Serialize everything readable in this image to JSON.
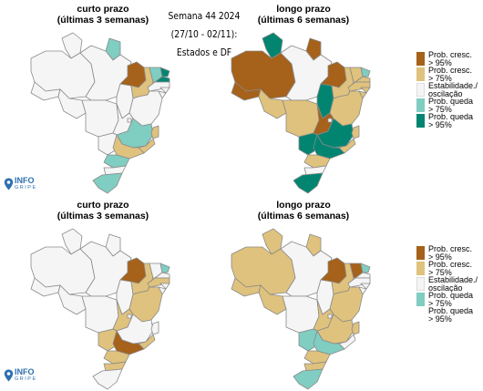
{
  "main_title": {
    "line1": "Semana 44 2024",
    "line2": "(27/10 - 02/11):",
    "line3": "Estados e DF"
  },
  "panels": [
    {
      "title_line1": "curto prazo",
      "title_line2": "(últimas 3 semanas)",
      "states": {
        "RR": "stable",
        "AP": "queda75",
        "AM": "stable",
        "PA": "stable",
        "AC": "stable",
        "RO": "stable",
        "MT": "stable",
        "TO": "stable",
        "MA": "cresc95",
        "PI": "cresc75",
        "CE": "queda75",
        "RN": "queda95",
        "PB": "queda95",
        "PE": "stable",
        "AL": "stable",
        "SE": "stable",
        "BA": "stable",
        "GO": "stable",
        "DF": "stable",
        "MS": "stable",
        "MG": "queda75",
        "ES": "cresc75",
        "RJ": "cresc75",
        "SP": "cresc75",
        "PR": "queda75",
        "SC": "stable",
        "RS": "queda75"
      }
    },
    {
      "title_line1": "longo prazo",
      "title_line2": "(últimas 6 semanas)",
      "states": {
        "RR": "queda95",
        "AP": "cresc95",
        "AM": "cresc95",
        "PA": "stable",
        "AC": "cresc95",
        "RO": "cresc75",
        "MT": "cresc75",
        "TO": "queda95",
        "MA": "cresc95",
        "PI": "cresc75",
        "CE": "cresc75",
        "RN": "queda75",
        "PB": "cresc75",
        "PE": "cresc75",
        "AL": "cresc75",
        "SE": "cresc75",
        "BA": "cresc75",
        "GO": "cresc95",
        "DF": "stable",
        "MS": "queda95",
        "MG": "queda95",
        "ES": "cresc75",
        "RJ": "cresc75",
        "SP": "queda95",
        "PR": "cresc75",
        "SC": "stable",
        "RS": "queda95"
      }
    },
    {
      "title_line1": "curto prazo",
      "title_line2": "(últimas 3 semanas)",
      "states": {
        "RR": "stable",
        "AP": "stable",
        "AM": "stable",
        "PA": "stable",
        "AC": "stable",
        "RO": "stable",
        "MT": "stable",
        "TO": "stable",
        "MA": "cresc95",
        "PI": "cresc75",
        "CE": "stable",
        "RN": "queda75",
        "PB": "stable",
        "PE": "cresc75",
        "AL": "stable",
        "SE": "stable",
        "BA": "cresc75",
        "GO": "cresc75",
        "DF": "stable",
        "MS": "cresc75",
        "MG": "stable",
        "ES": "stable",
        "RJ": "cresc75",
        "SP": "cresc95",
        "PR": "cresc75",
        "SC": "cresc75",
        "RS": "stable"
      }
    },
    {
      "title_line1": "longo prazo",
      "title_line2": "(últimas 6 semanas)",
      "states": {
        "RR": "cresc75",
        "AP": "cresc75",
        "AM": "cresc75",
        "PA": "stable",
        "AC": "cresc75",
        "RO": "cresc75",
        "MT": "stable",
        "TO": "stable",
        "MA": "cresc95",
        "PI": "cresc75",
        "CE": "cresc95",
        "RN": "queda75",
        "PB": "stable",
        "PE": "stable",
        "AL": "stable",
        "SE": "stable",
        "BA": "cresc75",
        "GO": "cresc75",
        "DF": "stable",
        "MS": "queda75",
        "MG": "cresc75",
        "ES": "cresc75",
        "RJ": "stable",
        "SP": "queda75",
        "PR": "cresc75",
        "SC": "cresc75",
        "RS": "queda75"
      }
    }
  ],
  "legend": [
    {
      "key": "cresc95",
      "line1": "Prob. cresc.",
      "line2": "> 95%",
      "color": "#a6611a"
    },
    {
      "key": "cresc75",
      "line1": "Prob. cresc.",
      "line2": "> 75%",
      "color": "#dfc27d"
    },
    {
      "key": "stable",
      "line1": "Estabilidade./",
      "line2": "oscilação",
      "color": "#f5f5f5"
    },
    {
      "key": "queda75",
      "line1": "Prob. queda",
      "line2": "> 75%",
      "color": "#80cdc1"
    },
    {
      "key": "queda95",
      "line1": "Prob. queda",
      "line2": "> 95%",
      "color": "#018571"
    }
  ],
  "logo": {
    "word": "INFO",
    "sub": "GRIPE",
    "color": "#2e6fb0"
  }
}
